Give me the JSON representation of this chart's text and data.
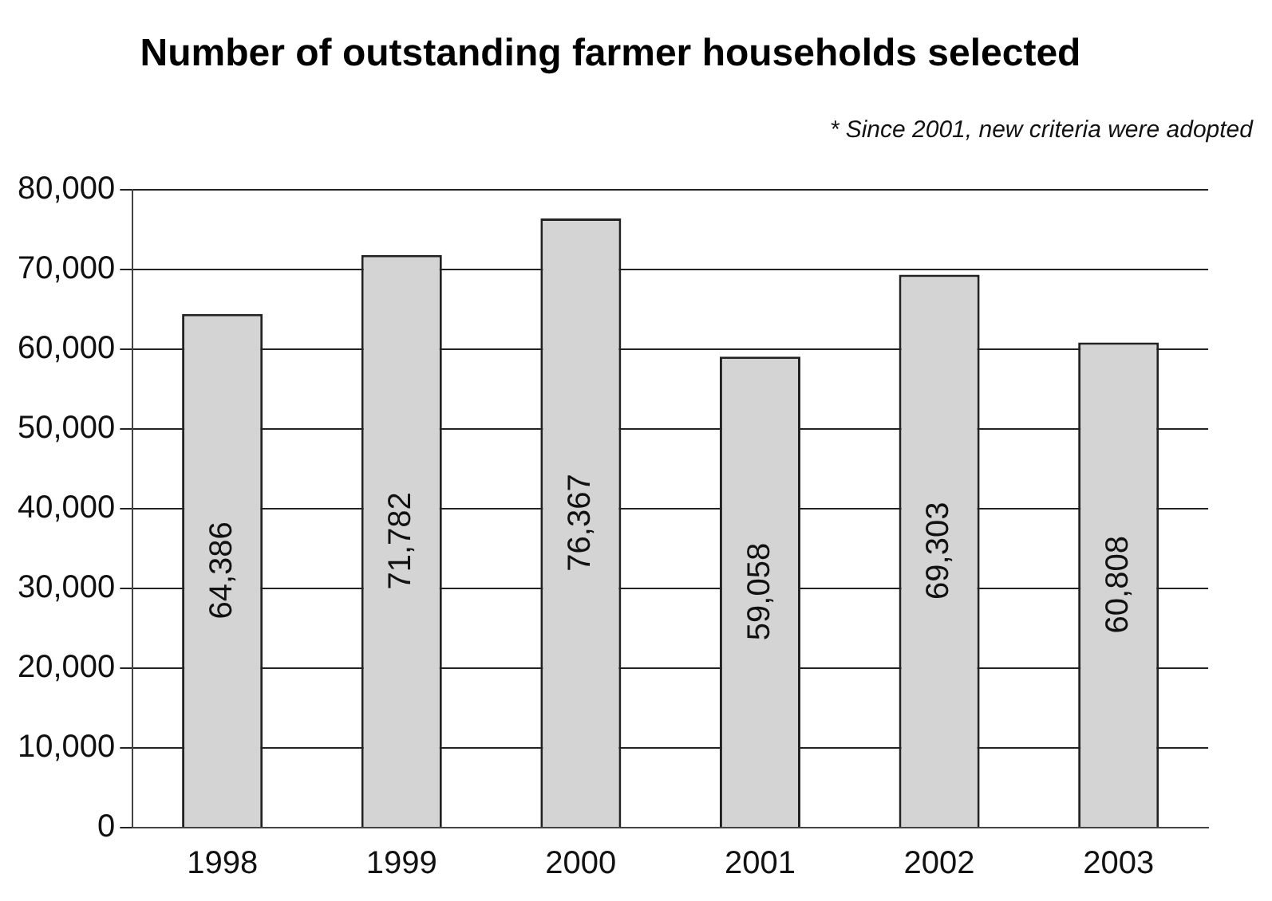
{
  "chart_data": {
    "type": "bar",
    "title": "Number of outstanding farmer households selected",
    "annotations": [
      "* Since 2001, new criteria were adopted"
    ],
    "categories": [
      "1998",
      "1999",
      "2000",
      "2001",
      "2002",
      "2003"
    ],
    "values": [
      64386,
      71782,
      76367,
      59058,
      69303,
      60808
    ],
    "value_labels": [
      "64,386",
      "71,782",
      "76,367",
      "59,058",
      "69,303",
      "60,808"
    ],
    "color": "#d4d4d4",
    "ylim": [
      0,
      80000
    ],
    "yticks": [
      {
        "value": 0,
        "label": "0"
      },
      {
        "value": 10000,
        "label": "10,000"
      },
      {
        "value": 20000,
        "label": "20,000"
      },
      {
        "value": 30000,
        "label": "30,000"
      },
      {
        "value": 40000,
        "label": "40,000"
      },
      {
        "value": 50000,
        "label": "50,000"
      },
      {
        "value": 60000,
        "label": "60,000"
      },
      {
        "value": 70000,
        "label": "70,000"
      },
      {
        "value": 80000,
        "label": "80,000"
      }
    ],
    "grid": "y",
    "legend": false
  }
}
